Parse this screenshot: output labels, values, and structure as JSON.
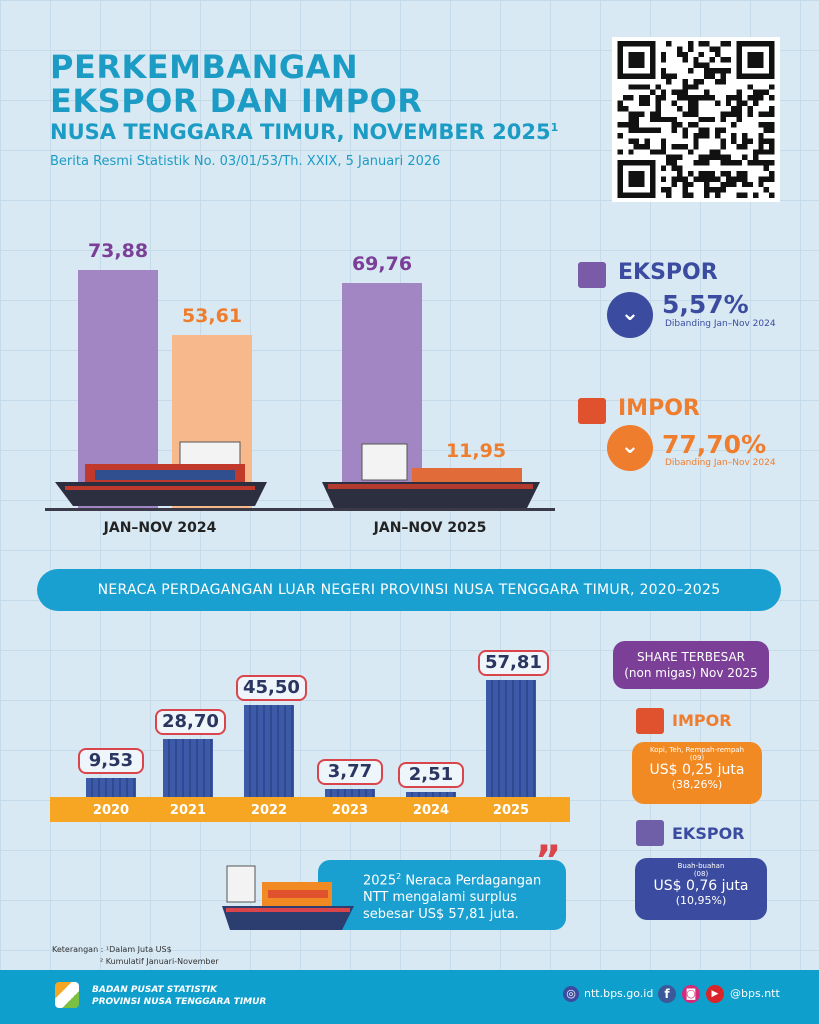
{
  "header": {
    "title_line1": "PERKEMBANGAN",
    "title_line2": "EKSPOR DAN IMPOR",
    "subtitle": "NUSA TENGGARA TIMUR, NOVEMBER 2025",
    "subtitle_sup": "1",
    "release": "Berita Resmi Statistik No. 03/01/53/Th. XXIX, 5 Januari 2026"
  },
  "summary": {
    "ekspor": {
      "label": "EKSPOR",
      "change": "5,57%",
      "compare": "Dibanding Jan–Nov 2024",
      "color": "#3b4ca0"
    },
    "impor": {
      "label": "IMPOR",
      "change": "77,70%",
      "compare": "Dibanding Jan–Nov 2024",
      "color": "#ef7d2e"
    }
  },
  "banner": "NERACA PERDAGANGAN LUAR NEGERI PROVINSI NUSA TENGGARA TIMUR, 2020–2025",
  "share": {
    "title_line1": "SHARE TERBESAR",
    "title_line2": "(non migas) Nov 2025",
    "impor": {
      "label": "IMPOR",
      "commodity": "Kopi, Teh, Rempah-rempah",
      "code": "(09)",
      "value": "US$ 0,25 juta",
      "pct": "(38,26%)"
    },
    "ekspor": {
      "label": "EKSPOR",
      "commodity": "Buah-buahan",
      "code": "(08)",
      "value": "US$ 0,76 juta",
      "pct": "(10,95%)"
    }
  },
  "callout": {
    "year": "2025",
    "sup": "2",
    "text1": " Neraca Perdagangan",
    "text2": "NTT mengalami surplus",
    "text3": "sebesar US$ 57,81 juta."
  },
  "notes": {
    "label": "Keterangan : ",
    "n1": "¹Dalam Juta US$",
    "n2": "² Kumulatif Januari-November"
  },
  "footer": {
    "org1": "BADAN PUSAT STATISTIK",
    "org2": "PROVINSI NUSA TENGGARA TIMUR",
    "web": "ntt.bps.go.id",
    "social": "@bps.ntt"
  },
  "chart_data": [
    {
      "type": "bar",
      "title": "Ekspor dan Impor Jan–Nov",
      "categories": [
        "JAN–NOV 2024",
        "JAN–NOV 2025"
      ],
      "series": [
        {
          "name": "Ekspor",
          "values": [
            73.88,
            69.76
          ],
          "labels": [
            "73,88",
            "69,76"
          ],
          "color": "#a186c3"
        },
        {
          "name": "Impor",
          "values": [
            53.61,
            11.95
          ],
          "labels": [
            "53,61",
            "11,95"
          ],
          "color": "#f7b98b"
        }
      ],
      "ylabel": "Juta US$",
      "ylim": [
        0,
        80
      ]
    },
    {
      "type": "bar",
      "title": "Neraca Perdagangan 2020–2025",
      "categories": [
        "2020",
        "2021",
        "2022",
        "2023",
        "2024",
        "2025"
      ],
      "values": [
        9.53,
        28.7,
        45.5,
        3.77,
        2.51,
        57.81
      ],
      "labels": [
        "9,53",
        "28,70",
        "45,50",
        "3,77",
        "2,51",
        "57,81"
      ],
      "color": "#3c5aa8",
      "ylim": [
        0,
        60
      ]
    }
  ]
}
